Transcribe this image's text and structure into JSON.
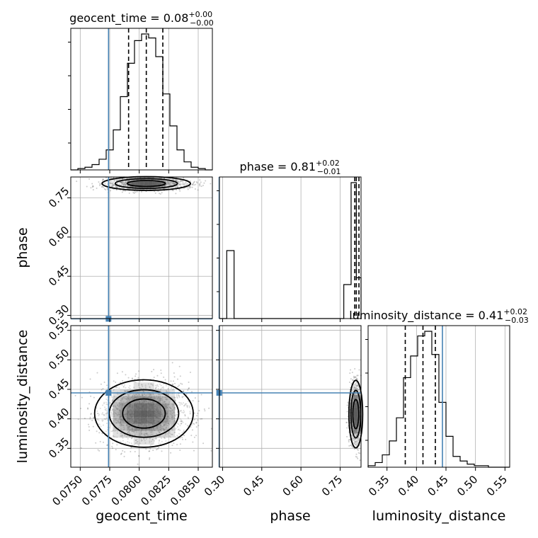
{
  "chart_data": {
    "type": "corner",
    "parameters": [
      "geocent_time",
      "phase",
      "luminosity_distance"
    ],
    "truths": {
      "geocent_time": 0.0774,
      "phase": 0.287,
      "luminosity_distance": 0.444
    },
    "colors": {
      "truth": "#4682b4",
      "hist": "#000000",
      "grid": "#b0b0b0"
    },
    "titles": [
      {
        "name": "geocent_time",
        "prefix": "geocent_time = 0.08",
        "up": "+0.00",
        "down": "−0.00"
      },
      {
        "name": "phase",
        "prefix": "phase = 0.81",
        "up": "+0.02",
        "down": "−0.01"
      },
      {
        "name": "luminosity_distance",
        "prefix": "luminosity_distance = 0.41",
        "up": "+0.02",
        "down": "−0.03"
      }
    ],
    "axis_labels": {
      "x": [
        "geocent_time",
        "phase",
        "luminosity_distance"
      ],
      "y": [
        "phase",
        "luminosity_distance"
      ]
    },
    "ranges": {
      "geocent_time": [
        0.0742,
        0.0862
      ],
      "phase": [
        0.288,
        0.83
      ],
      "luminosity_distance": [
        0.318,
        0.558
      ]
    },
    "ticks": {
      "geocent_time": [
        "0.0750",
        "0.0775",
        "0.0800",
        "0.0825",
        "0.0850"
      ],
      "phase": [
        "0.30",
        "0.45",
        "0.60",
        "0.75"
      ],
      "luminosity_distance": [
        "0.35",
        "0.40",
        "0.45",
        "0.50",
        "0.55"
      ]
    },
    "diagonal": {
      "geocent_time": {
        "quantiles": [
          0.0791,
          0.0806,
          0.082
        ],
        "bin_edges": [
          0.0742,
          0.0748,
          0.0754,
          0.076,
          0.0766,
          0.0772,
          0.0778,
          0.0784,
          0.079,
          0.0796,
          0.0802,
          0.0808,
          0.0814,
          0.082,
          0.0826,
          0.0832,
          0.0838,
          0.0844,
          0.085,
          0.0856,
          0.0862
        ],
        "counts": [
          0,
          1,
          2,
          4,
          8,
          15,
          30,
          55,
          80,
          97,
          102,
          99,
          85,
          57,
          33,
          15,
          6,
          2,
          1,
          0
        ]
      },
      "phase": {
        "quantiles": [
          0.806,
          0.812,
          0.822
        ],
        "bin_edges": [
          0.288,
          0.316,
          0.344,
          0.372,
          0.4,
          0.428,
          0.456,
          0.484,
          0.512,
          0.54,
          0.568,
          0.596,
          0.624,
          0.652,
          0.68,
          0.708,
          0.736,
          0.764,
          0.792,
          0.812,
          0.83
        ],
        "counts": [
          0,
          0.5,
          0,
          0,
          0,
          0,
          0,
          0,
          0,
          0,
          0,
          0,
          0,
          0,
          0,
          0,
          0,
          0.25,
          1,
          0.3
        ]
      },
      "luminosity_distance": {
        "quantiles": [
          0.381,
          0.411,
          0.432
        ],
        "bin_edges": [
          0.318,
          0.33,
          0.342,
          0.354,
          0.366,
          0.378,
          0.39,
          0.402,
          0.414,
          0.426,
          0.438,
          0.45,
          0.462,
          0.474,
          0.486,
          0.498,
          0.51,
          0.522,
          0.534,
          0.546,
          0.558
        ],
        "counts": [
          1,
          3,
          8,
          17,
          32,
          58,
          72,
          85,
          88,
          73,
          42,
          20,
          7,
          4,
          2,
          1,
          1,
          0,
          0,
          0
        ]
      }
    },
    "blobs": [
      {
        "x": "geocent_time",
        "y": "phase",
        "cx": 0.0806,
        "cy": 0.805,
        "sx": 0.0017,
        "sy": 0.012,
        "n": 1700
      },
      {
        "x": "geocent_time",
        "y": "luminosity_distance",
        "cx": 0.0804,
        "cy": 0.409,
        "sx": 0.0019,
        "sy": 0.026,
        "n": 1900
      },
      {
        "x": "phase",
        "y": "luminosity_distance",
        "cx": 0.81,
        "cy": 0.408,
        "sx": 0.012,
        "sy": 0.026,
        "n": 1500
      }
    ]
  }
}
